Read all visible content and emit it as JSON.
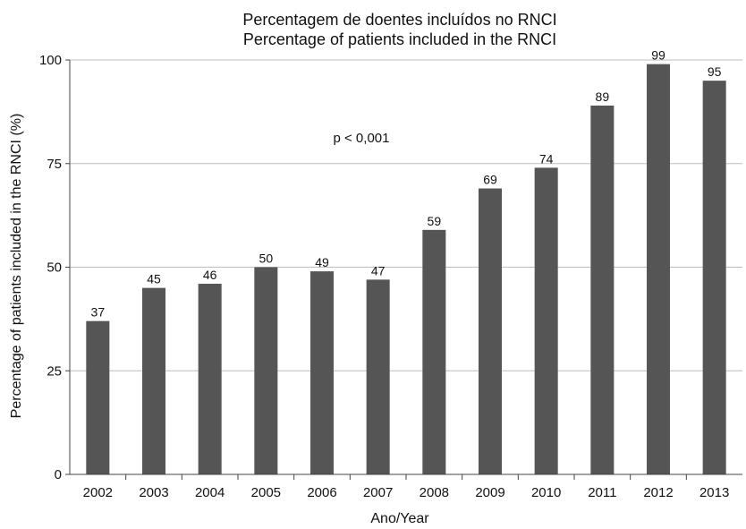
{
  "chart_data": {
    "type": "bar",
    "title": "Percentagem de doentes incluídos no RNCI",
    "subtitle": "Percentage of patients included in the RNCI",
    "xlabel": "Ano/Year",
    "ylabel": "Percentage of patients included in the RNCI (%)",
    "categories": [
      "2002",
      "2003",
      "2004",
      "2005",
      "2006",
      "2007",
      "2008",
      "2009",
      "2010",
      "2011",
      "2012",
      "2013"
    ],
    "values": [
      37,
      45,
      46,
      50,
      49,
      47,
      59,
      69,
      74,
      89,
      99,
      95
    ],
    "ylim": [
      0,
      100
    ],
    "yticks": [
      0,
      25,
      50,
      75,
      100
    ],
    "grid": true,
    "annotation": "p < 0,001",
    "colors": {
      "bar": "#555555",
      "grid": "#bdbdbd",
      "axis": "#444444"
    }
  }
}
